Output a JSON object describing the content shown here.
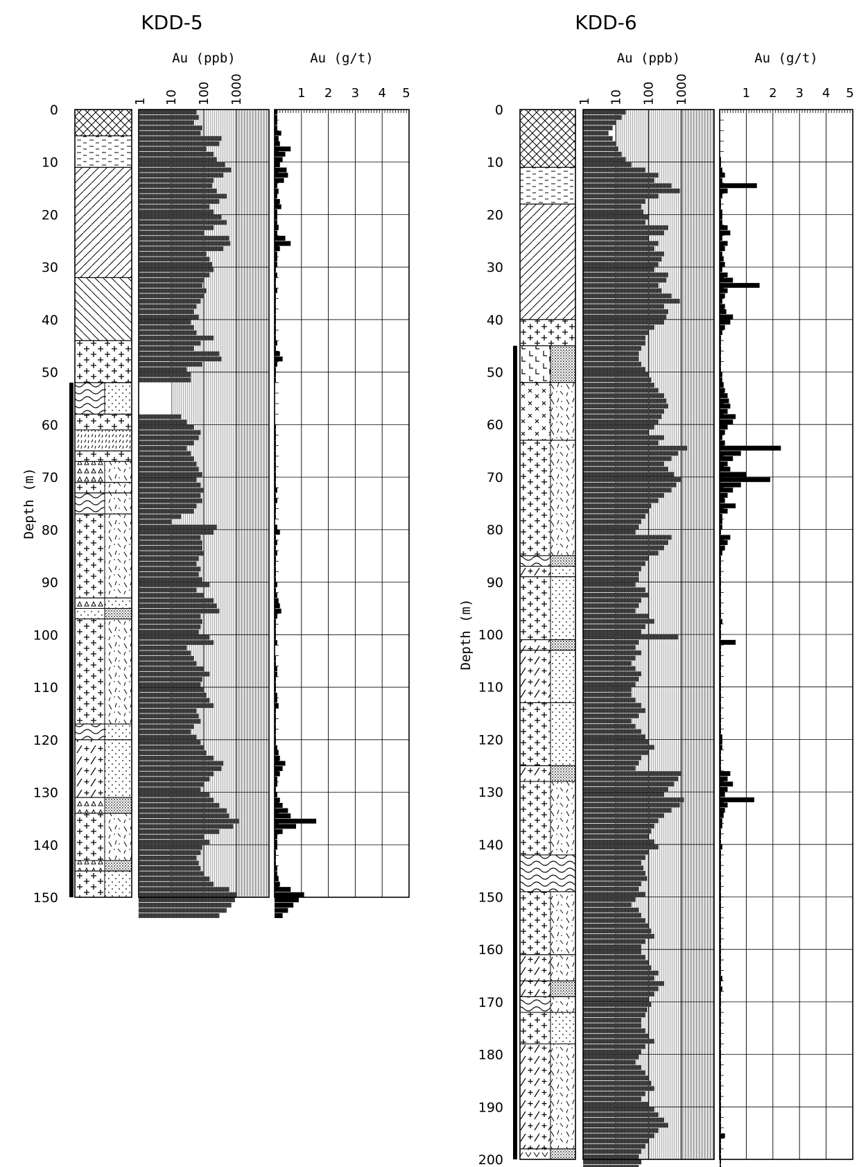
{
  "chart_data": [
    {
      "type": "bar",
      "title": "KDD-5",
      "ylabel": "Depth (m)",
      "depth_ticks": [
        "0",
        "10",
        "20",
        "30",
        "40",
        "50",
        "60",
        "70",
        "80",
        "90",
        "100",
        "110",
        "120",
        "130",
        "140",
        "150"
      ],
      "ylim": [
        0,
        150
      ],
      "ppb_panel": {
        "label": "Au (ppb)",
        "scale": "log",
        "xlim": [
          1,
          10000
        ],
        "ticks": [
          "1",
          "10",
          "100",
          "1000"
        ],
        "interval_m": 1,
        "no_data_intervals_m": [
          [
            52,
            58
          ]
        ],
        "values": [
          60,
          70,
          50,
          90,
          80,
          350,
          300,
          120,
          200,
          250,
          450,
          700,
          400,
          200,
          180,
          250,
          500,
          300,
          150,
          200,
          350,
          500,
          200,
          100,
          600,
          650,
          400,
          120,
          150,
          180,
          200,
          150,
          100,
          90,
          120,
          100,
          80,
          60,
          50,
          70,
          40,
          50,
          60,
          200,
          80,
          50,
          300,
          350,
          90,
          30,
          40,
          40,
          null,
          null,
          null,
          null,
          null,
          null,
          20,
          30,
          50,
          80,
          70,
          50,
          30,
          40,
          50,
          60,
          70,
          90,
          60,
          80,
          100,
          80,
          90,
          60,
          50,
          20,
          10,
          250,
          200,
          80,
          90,
          90,
          100,
          70,
          60,
          80,
          70,
          90,
          150,
          60,
          100,
          200,
          250,
          300,
          80,
          90,
          80,
          70,
          150,
          200,
          30,
          40,
          50,
          60,
          100,
          150,
          90,
          80,
          100,
          120,
          150,
          200,
          60,
          70,
          80,
          50,
          40,
          60,
          80,
          100,
          120,
          200,
          400,
          350,
          200,
          150,
          100,
          80,
          150,
          200,
          300,
          500,
          600,
          1200,
          800,
          300,
          100,
          150,
          90,
          80,
          60,
          70,
          80,
          100,
          150,
          200,
          600,
          1000,
          900,
          700,
          500,
          300
        ]
      },
      "gt_panel": {
        "label": "Au (g/t)",
        "xlim": [
          0,
          5
        ],
        "ticks": [
          "1",
          "2",
          "3",
          "4",
          "5"
        ],
        "interval_m": 1,
        "values": [
          0.1,
          0.1,
          0.1,
          0.1,
          0.25,
          0.15,
          0.2,
          0.6,
          0.4,
          0.3,
          0.2,
          0.45,
          0.5,
          0.35,
          0.1,
          0.15,
          0.1,
          0.2,
          0.25,
          0.1,
          0.1,
          0.1,
          0.15,
          0.1,
          0.4,
          0.6,
          0.2,
          0.1,
          0.1,
          0.1,
          0.05,
          0.1,
          0.05,
          0.05,
          0.1,
          0.05,
          0.05,
          0.05,
          0.05,
          0.05,
          0.05,
          0.05,
          0.05,
          0.05,
          0.1,
          0.05,
          0.2,
          0.3,
          0.1,
          0.05,
          0.05,
          0.05,
          0.02,
          0.02,
          0.02,
          0.02,
          0.02,
          0.02,
          0.02,
          0.02,
          0.05,
          0.05,
          0.05,
          0.05,
          0.05,
          0.05,
          0.05,
          0.05,
          0.05,
          0.05,
          0.05,
          0.05,
          0.1,
          0.05,
          0.1,
          0.05,
          0.05,
          0.05,
          0.02,
          0.1,
          0.2,
          0.05,
          0.1,
          0.05,
          0.1,
          0.05,
          0.05,
          0.05,
          0.05,
          0.05,
          0.1,
          0.05,
          0.1,
          0.15,
          0.2,
          0.25,
          0.1,
          0.05,
          0.05,
          0.05,
          0.05,
          0.1,
          0.02,
          0.02,
          0.05,
          0.05,
          0.1,
          0.1,
          0.05,
          0.05,
          0.05,
          0.1,
          0.1,
          0.15,
          0.05,
          0.05,
          0.05,
          0.05,
          0.05,
          0.05,
          0.05,
          0.1,
          0.15,
          0.2,
          0.4,
          0.3,
          0.2,
          0.1,
          0.1,
          0.05,
          0.1,
          0.2,
          0.3,
          0.5,
          0.6,
          1.55,
          0.8,
          0.3,
          0.1,
          0.1,
          0.1,
          0.05,
          0.05,
          0.05,
          0.1,
          0.1,
          0.15,
          0.2,
          0.6,
          1.1,
          0.9,
          0.7,
          0.5,
          0.3
        ]
      },
      "lithology": [
        {
          "from": 0,
          "to": 5,
          "pattern": "crosshatch"
        },
        {
          "from": 5,
          "to": 11,
          "pattern": "dash-lines"
        },
        {
          "from": 11,
          "to": 32,
          "pattern": "diagonal-right"
        },
        {
          "from": 32,
          "to": 44,
          "pattern": "diagonal-left"
        },
        {
          "from": 44,
          "to": 52,
          "pattern": "plus"
        },
        {
          "from": 52,
          "to": 58,
          "pattern": "wave",
          "right_pattern": "dots"
        },
        {
          "from": 58,
          "to": 61,
          "pattern": "plus"
        },
        {
          "from": 61,
          "to": 65,
          "pattern": "tick"
        },
        {
          "from": 65,
          "to": 67,
          "pattern": "plus"
        },
        {
          "from": 67,
          "to": 71,
          "pattern": "triangle",
          "right_pattern": "dash-random"
        },
        {
          "from": 71,
          "to": 73,
          "pattern": "plus",
          "right_pattern": "dash-random"
        },
        {
          "from": 73,
          "to": 77,
          "pattern": "wave",
          "right_pattern": "dash-random"
        },
        {
          "from": 77,
          "to": 93,
          "pattern": "plus",
          "right_pattern": "dash-random"
        },
        {
          "from": 93,
          "to": 95,
          "pattern": "triangle",
          "right_pattern": "dots"
        },
        {
          "from": 95,
          "to": 97,
          "pattern": "dots",
          "right_pattern": "dense-dots"
        },
        {
          "from": 97,
          "to": 117,
          "pattern": "plus",
          "right_pattern": "dash-random"
        },
        {
          "from": 117,
          "to": 120,
          "pattern": "wave",
          "right_pattern": "dots"
        },
        {
          "from": 120,
          "to": 131,
          "pattern": "plus-slash",
          "right_pattern": "dots"
        },
        {
          "from": 131,
          "to": 134,
          "pattern": "triangle",
          "right_pattern": "dense-dots"
        },
        {
          "from": 134,
          "to": 143,
          "pattern": "plus",
          "right_pattern": "dash-random"
        },
        {
          "from": 143,
          "to": 145,
          "pattern": "triangle",
          "right_pattern": "dense-dots"
        },
        {
          "from": 145,
          "to": 150,
          "pattern": "plus",
          "right_pattern": "dots"
        }
      ],
      "solid_bar_intervals_m": [
        [
          52,
          150
        ]
      ]
    },
    {
      "type": "bar",
      "title": "KDD-6",
      "ylabel": "Depth (m)",
      "depth_ticks": [
        "0",
        "10",
        "20",
        "30",
        "40",
        "50",
        "60",
        "70",
        "80",
        "90",
        "100",
        "110",
        "120",
        "130",
        "140",
        "150",
        "160",
        "170",
        "180",
        "190",
        "200"
      ],
      "ylim": [
        0,
        200
      ],
      "ppb_panel": {
        "label": "Au (ppb)",
        "scale": "log",
        "xlim": [
          1,
          10000
        ],
        "ticks": [
          "1",
          "10",
          "100",
          "1000"
        ],
        "interval_m": 1,
        "no_data_intervals_m": [],
        "values": [
          20,
          15,
          10,
          8,
          6,
          8,
          10,
          12,
          15,
          20,
          30,
          80,
          200,
          150,
          500,
          900,
          200,
          80,
          60,
          70,
          100,
          80,
          400,
          300,
          100,
          200,
          150,
          300,
          250,
          200,
          150,
          400,
          350,
          200,
          250,
          500,
          900,
          300,
          400,
          350,
          300,
          150,
          100,
          80,
          80,
          60,
          50,
          50,
          60,
          80,
          100,
          120,
          150,
          200,
          300,
          350,
          400,
          300,
          250,
          200,
          150,
          100,
          300,
          200,
          1500,
          800,
          500,
          300,
          400,
          600,
          1000,
          700,
          500,
          300,
          200,
          120,
          100,
          80,
          60,
          50,
          40,
          500,
          400,
          300,
          200,
          100,
          80,
          60,
          50,
          50,
          40,
          80,
          100,
          60,
          50,
          40,
          100,
          150,
          80,
          60,
          800,
          50,
          40,
          60,
          40,
          30,
          40,
          60,
          50,
          40,
          30,
          30,
          40,
          60,
          80,
          50,
          30,
          40,
          60,
          80,
          100,
          150,
          100,
          60,
          50,
          40,
          1000,
          800,
          600,
          400,
          300,
          1200,
          900,
          500,
          300,
          200,
          150,
          120,
          100,
          150,
          200,
          100,
          80,
          60,
          70,
          80,
          90,
          60,
          50,
          80,
          40,
          30,
          50,
          60,
          80,
          100,
          120,
          150,
          80,
          60,
          60,
          80,
          100,
          120,
          200,
          150,
          300,
          200,
          150,
          100,
          120,
          90,
          80,
          60,
          60,
          80,
          100,
          150,
          80,
          60,
          50,
          40,
          60,
          80,
          100,
          120,
          150,
          80,
          60,
          100,
          150,
          200,
          300,
          400,
          200,
          150,
          100,
          80,
          60,
          50,
          60,
          50
        ]
      },
      "gt_panel": {
        "label": "Au (g/t)",
        "xlim": [
          0,
          5
        ],
        "ticks": [
          "1",
          "2",
          "3",
          "4",
          "5"
        ],
        "interval_m": 1,
        "values": [
          0.02,
          0.02,
          0.02,
          0.02,
          0.02,
          0.02,
          0.02,
          0.02,
          0.02,
          0.05,
          0.05,
          0.1,
          0.2,
          0.1,
          1.4,
          0.3,
          0.1,
          0.05,
          0.05,
          0.1,
          0.1,
          0.1,
          0.3,
          0.4,
          0.1,
          0.3,
          0.2,
          0.1,
          0.15,
          0.2,
          0.1,
          0.3,
          0.5,
          1.5,
          0.3,
          0.2,
          0.1,
          0.2,
          0.25,
          0.5,
          0.4,
          0.2,
          0.1,
          0.05,
          0.05,
          0.05,
          0.05,
          0.05,
          0.05,
          0.05,
          0.1,
          0.1,
          0.15,
          0.2,
          0.3,
          0.35,
          0.4,
          0.3,
          0.6,
          0.5,
          0.3,
          0.2,
          0.1,
          0.2,
          2.3,
          0.8,
          0.5,
          0.3,
          0.4,
          1.0,
          1.9,
          0.8,
          0.5,
          0.3,
          0.2,
          0.6,
          0.3,
          0.1,
          0.1,
          0.1,
          0.05,
          0.4,
          0.3,
          0.2,
          0.1,
          0.05,
          0.05,
          0.05,
          0.05,
          0.05,
          0.05,
          0.05,
          0.05,
          0.05,
          0.05,
          0.05,
          0.05,
          0.1,
          0.05,
          0.05,
          0.05,
          0.6,
          0.05,
          0.05,
          0.05,
          0.05,
          0.05,
          0.05,
          0.05,
          0.05,
          0.05,
          0.05,
          0.05,
          0.05,
          0.05,
          0.05,
          0.05,
          0.05,
          0.05,
          0.1,
          0.1,
          0.1,
          0.05,
          0.05,
          0.05,
          0.05,
          0.4,
          0.3,
          0.5,
          0.3,
          0.2,
          1.3,
          0.3,
          0.2,
          0.15,
          0.1,
          0.1,
          0.05,
          0.05,
          0.05,
          0.1,
          0.05,
          0.05,
          0.05,
          0.05,
          0.05,
          0.05,
          0.05,
          0.05,
          0.05,
          0.05,
          0.05,
          0.05,
          0.05,
          0.05,
          0.05,
          0.05,
          0.05,
          0.05,
          0.05,
          0.05,
          0.05,
          0.05,
          0.05,
          0.05,
          0.1,
          0.05,
          0.1,
          0.05,
          0.05,
          0.05,
          0.05,
          0.05,
          0.05,
          0.05,
          0.05,
          0.05,
          0.05,
          0.05,
          0.05,
          0.05,
          0.05,
          0.05,
          0.05,
          0.05,
          0.05,
          0.05,
          0.05,
          0.05,
          0.05,
          0.05,
          0.05,
          0.05,
          0.05,
          0.05,
          0.2,
          0.05,
          0.05,
          0.05,
          0.05,
          0.05,
          0.05,
          0.05,
          0.05
        ]
      },
      "lithology": [
        {
          "from": 0,
          "to": 11,
          "pattern": "crosshatch"
        },
        {
          "from": 11,
          "to": 18,
          "pattern": "dash-lines"
        },
        {
          "from": 18,
          "to": 40,
          "pattern": "diagonal-right"
        },
        {
          "from": 40,
          "to": 45,
          "pattern": "plus"
        },
        {
          "from": 45,
          "to": 52,
          "pattern": "L-marks",
          "right_pattern": "dense-dots"
        },
        {
          "from": 52,
          "to": 63,
          "pattern": "x-marks",
          "right_pattern": "dash-random"
        },
        {
          "from": 63,
          "to": 85,
          "pattern": "plus",
          "right_pattern": "dash-random"
        },
        {
          "from": 85,
          "to": 87,
          "pattern": "wave",
          "right_pattern": "dense-dots"
        },
        {
          "from": 87,
          "to": 89,
          "pattern": "plus-slash",
          "right_pattern": "dots"
        },
        {
          "from": 89,
          "to": 101,
          "pattern": "plus",
          "right_pattern": "dots"
        },
        {
          "from": 101,
          "to": 103,
          "pattern": "plus-slash",
          "right_pattern": "dense-dots"
        },
        {
          "from": 103,
          "to": 113,
          "pattern": "plus-slash",
          "right_pattern": "dots"
        },
        {
          "from": 113,
          "to": 125,
          "pattern": "plus",
          "right_pattern": "dots"
        },
        {
          "from": 125,
          "to": 128,
          "pattern": "plus-slash",
          "right_pattern": "dense-dots"
        },
        {
          "from": 128,
          "to": 142,
          "pattern": "plus",
          "right_pattern": "dash-random"
        },
        {
          "from": 142,
          "to": 149,
          "pattern": "wave"
        },
        {
          "from": 149,
          "to": 161,
          "pattern": "plus",
          "right_pattern": "dash-random"
        },
        {
          "from": 161,
          "to": 166,
          "pattern": "plus-slash",
          "right_pattern": "dash-random"
        },
        {
          "from": 166,
          "to": 169,
          "pattern": "plus-slash",
          "right_pattern": "dense-dots"
        },
        {
          "from": 169,
          "to": 172,
          "pattern": "wave",
          "right_pattern": "dash-random"
        },
        {
          "from": 172,
          "to": 178,
          "pattern": "plus",
          "right_pattern": "dots"
        },
        {
          "from": 178,
          "to": 198,
          "pattern": "plus-slash",
          "right_pattern": "dash-random"
        },
        {
          "from": 198,
          "to": 200,
          "pattern": "v-marks",
          "right_pattern": "dense-dots"
        }
      ],
      "solid_bar_intervals_m": [
        [
          45,
          63
        ],
        [
          63,
          200
        ]
      ]
    }
  ]
}
